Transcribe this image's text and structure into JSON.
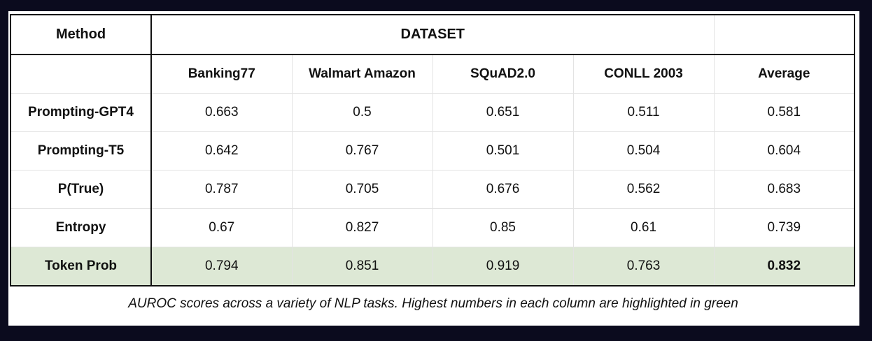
{
  "table": {
    "method_header": "Method",
    "dataset_header": "DATASET",
    "columns": [
      "Banking77",
      "Walmart Amazon",
      "SQuAD2.0",
      "CONLL 2003",
      "Average"
    ],
    "rows": [
      {
        "method": "Prompting-GPT4",
        "values": [
          "0.663",
          "0.5",
          "0.651",
          "0.511",
          "0.581"
        ]
      },
      {
        "method": "Prompting-T5",
        "values": [
          "0.642",
          "0.767",
          "0.501",
          "0.504",
          "0.604"
        ]
      },
      {
        "method": "P(True)",
        "values": [
          "0.787",
          "0.705",
          "0.676",
          "0.562",
          "0.683"
        ]
      },
      {
        "method": "Entropy",
        "values": [
          "0.67",
          "0.827",
          "0.85",
          "0.61",
          "0.739"
        ]
      },
      {
        "method": "Token Prob",
        "values": [
          "0.794",
          "0.851",
          "0.919",
          "0.763",
          "0.832"
        ],
        "highlighted": true
      }
    ],
    "highlight_color": "#dde8d5"
  },
  "caption": "AUROC scores across a variety of NLP tasks. Highest numbers in each column are highlighted in green"
}
